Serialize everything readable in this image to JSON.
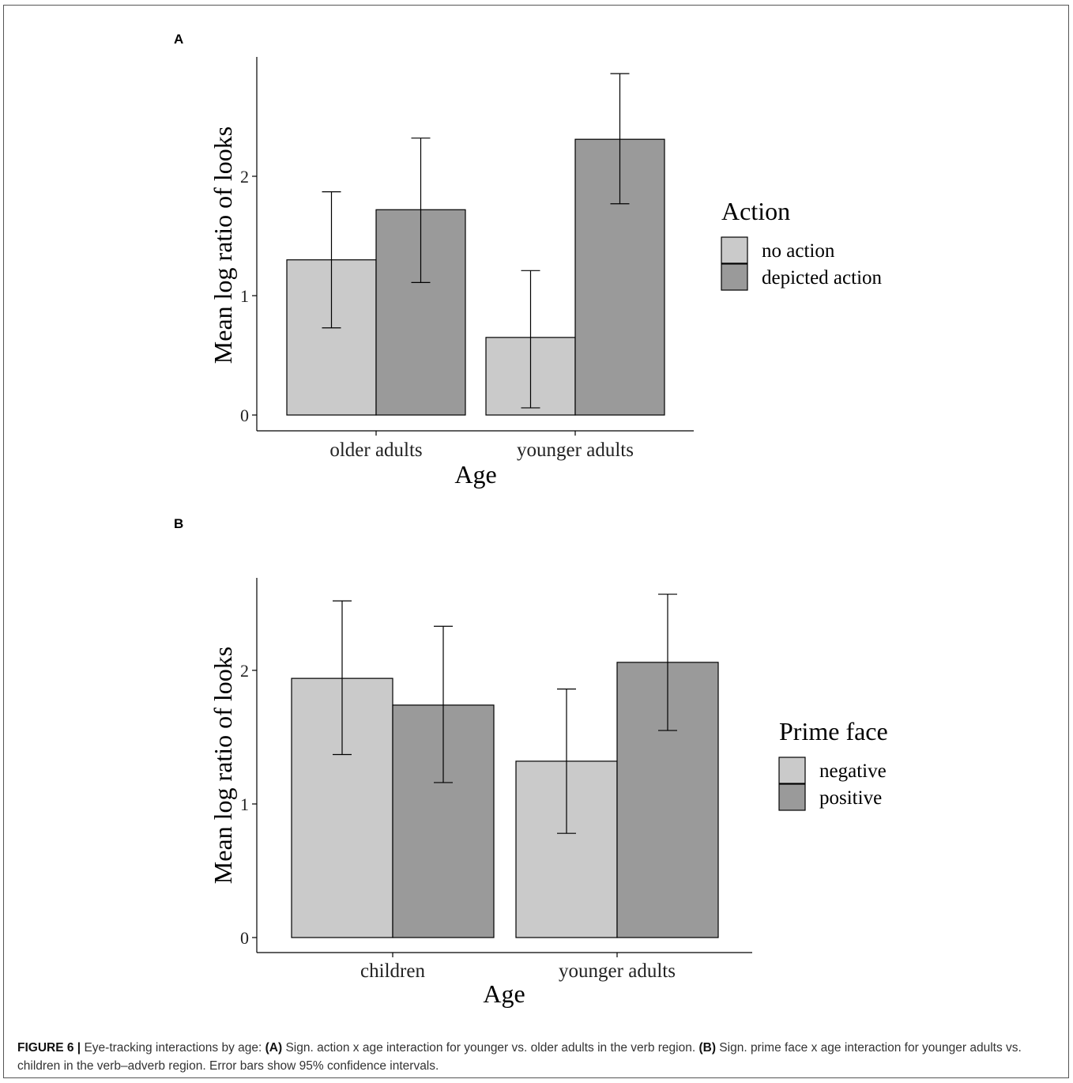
{
  "colors": {
    "light": "#cacaca",
    "dark": "#9a9a9a",
    "stroke": "#000000"
  },
  "chart_data": [
    {
      "type": "bar",
      "panel": "A",
      "categories": [
        "older adults",
        "younger adults"
      ],
      "series": [
        {
          "name": "no action",
          "values": [
            1.3,
            0.65
          ],
          "ci_low": [
            0.73,
            0.06
          ],
          "ci_high": [
            1.87,
            1.21
          ]
        },
        {
          "name": "depicted action",
          "values": [
            1.72,
            2.31
          ],
          "ci_low": [
            1.11,
            1.77
          ],
          "ci_high": [
            2.32,
            2.86
          ]
        }
      ],
      "xlabel": "Age",
      "ylabel": "Mean log ratio of looks",
      "yticks": [
        0,
        1,
        2
      ],
      "ylim": [
        -0.14,
        3.0
      ],
      "legend_title": "Action",
      "legend_position": "right"
    },
    {
      "type": "bar",
      "panel": "B",
      "categories": [
        "children",
        "younger adults"
      ],
      "series": [
        {
          "name": "negative",
          "values": [
            1.94,
            1.32
          ],
          "ci_low": [
            1.37,
            0.78
          ],
          "ci_high": [
            2.52,
            1.86
          ]
        },
        {
          "name": "positive",
          "values": [
            1.74,
            2.06
          ],
          "ci_low": [
            1.16,
            1.55
          ],
          "ci_high": [
            2.33,
            2.57
          ]
        }
      ],
      "xlabel": "Age",
      "ylabel": "Mean log ratio of looks",
      "yticks": [
        0,
        1,
        2
      ],
      "ylim": [
        -0.12,
        2.7
      ],
      "legend_title": "Prime face",
      "legend_position": "right"
    }
  ],
  "caption": {
    "label": "FIGURE 6 |",
    "part1": " Eye-tracking interactions by age: ",
    "a_ref": "(A)",
    "part2": " Sign. action x age interaction for younger vs. older adults in the verb region. ",
    "b_ref": "(B)",
    "part3": " Sign. prime face x age interaction for younger adults vs. children in the verb–adverb region. Error bars show 95% confidence intervals."
  }
}
